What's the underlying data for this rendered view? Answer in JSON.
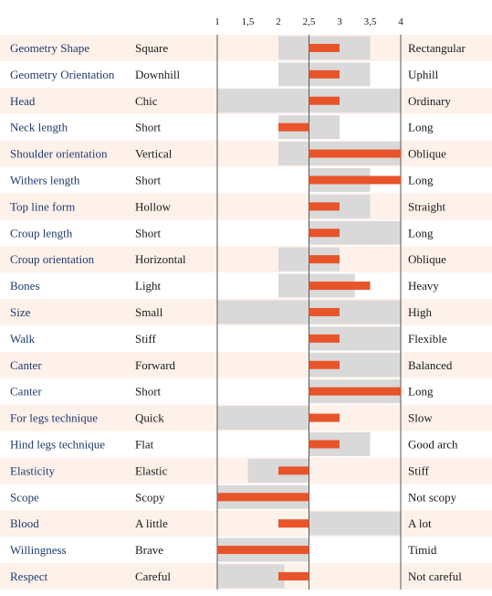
{
  "chart_data": {
    "type": "bar",
    "xlim": [
      1,
      4
    ],
    "ticks": [
      {
        "value": 1,
        "label": "1"
      },
      {
        "value": 1.5,
        "label": "1,5"
      },
      {
        "value": 2,
        "label": "2"
      },
      {
        "value": 2.5,
        "label": "2,5"
      },
      {
        "value": 3,
        "label": "3"
      },
      {
        "value": 3.5,
        "label": "3,5"
      },
      {
        "value": 4,
        "label": "4"
      }
    ],
    "center": 2.5,
    "colors": {
      "range_band": "#d9d9d9",
      "value_bar": "#e8542a",
      "row_shade": "#fdf1ea",
      "trait_text": "#1f3a6e",
      "axis_line": "#555555"
    },
    "rows": [
      {
        "trait": "Geometry Shape",
        "low": "Square",
        "high": "Rectangular",
        "range": [
          2,
          3.5
        ],
        "value": 3
      },
      {
        "trait": "Geometry Orientation",
        "low": "Downhill",
        "high": "Uphill",
        "range": [
          2,
          3.5
        ],
        "value": 3
      },
      {
        "trait": "Head",
        "low": "Chic",
        "high": "Ordinary",
        "range": [
          1,
          4
        ],
        "value": 3
      },
      {
        "trait": "Neck length",
        "low": "Short",
        "high": "Long",
        "range": [
          2,
          3
        ],
        "value": 2
      },
      {
        "trait": "Shoulder orientation",
        "low": "Vertical",
        "high": "Oblique",
        "range": [
          2,
          4
        ],
        "value": 4
      },
      {
        "trait": "Withers length",
        "low": "Short",
        "high": "Long",
        "range": [
          2.5,
          3.5
        ],
        "value": 4
      },
      {
        "trait": "Top line form",
        "low": "Hollow",
        "high": "Straight",
        "range": [
          2.5,
          3.5
        ],
        "value": 3
      },
      {
        "trait": "Croup length",
        "low": "Short",
        "high": "Long",
        "range": [
          2.5,
          4
        ],
        "value": 3
      },
      {
        "trait": "Croup orientation",
        "low": "Horizontal",
        "high": "Oblique",
        "range": [
          2,
          3
        ],
        "value": 3
      },
      {
        "trait": "Bones",
        "low": "Light",
        "high": "Heavy",
        "range": [
          2,
          3.25
        ],
        "value": 3.5
      },
      {
        "trait": "Size",
        "low": "Small",
        "high": "High",
        "range": [
          1,
          4
        ],
        "value": 3
      },
      {
        "trait": "Walk",
        "low": "Stiff",
        "high": "Flexible",
        "range": [
          2.5,
          4
        ],
        "value": 3
      },
      {
        "trait": "Canter",
        "low": "Forward",
        "high": "Balanced",
        "range": [
          2.5,
          4
        ],
        "value": 3
      },
      {
        "trait": "Canter",
        "low": "Short",
        "high": "Long",
        "range": [
          2.5,
          4
        ],
        "value": 4
      },
      {
        "trait": "For legs technique",
        "low": "Quick",
        "high": "Slow",
        "range": [
          1,
          2.5
        ],
        "value": 3
      },
      {
        "trait": "Hind legs technique",
        "low": "Flat",
        "high": "Good arch",
        "range": [
          2.5,
          3.5
        ],
        "value": 3
      },
      {
        "trait": "Elasticity",
        "low": "Elastic",
        "high": "Stiff",
        "range": [
          1.5,
          2.5
        ],
        "value": 2
      },
      {
        "trait": "Scope",
        "low": "Scopy",
        "high": "Not scopy",
        "range": [
          1,
          2.5
        ],
        "value": 1
      },
      {
        "trait": "Blood",
        "low": "A little",
        "high": "A lot",
        "range": [
          2.5,
          4
        ],
        "value": 2
      },
      {
        "trait": "Willingness",
        "low": "Brave",
        "high": "Timid",
        "range": [
          1,
          2.5
        ],
        "value": 1
      },
      {
        "trait": "Respect",
        "low": "Careful",
        "high": "Not careful",
        "range": [
          1,
          2.1
        ],
        "value": 2
      }
    ]
  }
}
